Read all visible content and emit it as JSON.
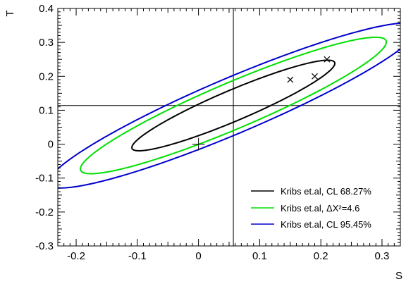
{
  "chart_data": {
    "type": "scatter",
    "xlabel": "S",
    "ylabel": "T",
    "xlim": [
      -0.23,
      0.33
    ],
    "ylim": [
      -0.3,
      0.4
    ],
    "x_ticks": [
      -0.2,
      -0.1,
      0,
      0.1,
      0.2,
      0.3
    ],
    "x_tick_labels": [
      "-0.2",
      "-0.1",
      "0",
      "0.1",
      "0.2",
      "0.3"
    ],
    "y_ticks": [
      -0.3,
      -0.2,
      -0.1,
      0,
      0.1,
      0.2,
      0.3,
      0.4
    ],
    "y_tick_labels": [
      "-0.3",
      "-0.2",
      "-0.1",
      "0",
      "0.1",
      "0.2",
      "0.3",
      "0.4"
    ],
    "grid": false,
    "legend_position": "bottom-right",
    "reference_lines": {
      "vertical_s": 0.057,
      "horizontal_t": 0.114
    },
    "series": [
      {
        "name": "Kribs et.al, CL 68.27%",
        "kind": "ellipse",
        "color": "#000000",
        "center": [
          0.057,
          0.114
        ],
        "semi_axes": [
          0.2093,
          0.0391
        ],
        "angle_deg": 38.36
      },
      {
        "name": "Kribs et.al, ΔX²=4.6",
        "kind": "ellipse",
        "color": "#00e000",
        "center": [
          0.057,
          0.114
        ],
        "semi_axes": [
          0.3155,
          0.0586
        ],
        "angle_deg": 38.36
      },
      {
        "name": "Kribs et.al, CL 95.45%",
        "kind": "ellipse",
        "color": "#0000cc",
        "center": [
          0.057,
          0.114
        ],
        "semi_axes": [
          0.3814,
          0.0704
        ],
        "angle_deg": 38.36
      }
    ],
    "points": [
      {
        "marker": "plus",
        "x": 0.0,
        "y": 0.0
      },
      {
        "marker": "x",
        "x": 0.15,
        "y": 0.19
      },
      {
        "marker": "x",
        "x": 0.19,
        "y": 0.2
      },
      {
        "marker": "x",
        "x": 0.21,
        "y": 0.25
      }
    ]
  }
}
